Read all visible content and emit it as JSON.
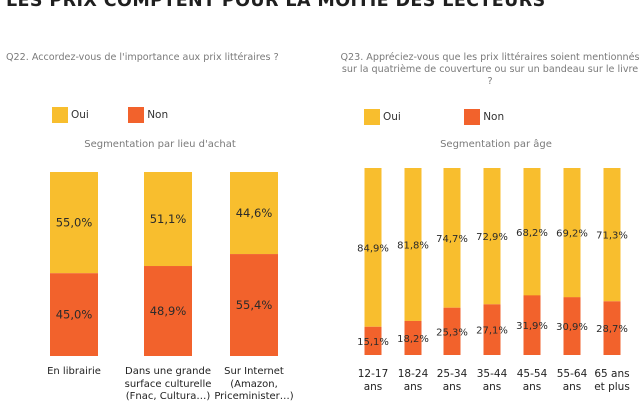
{
  "headline": "LES PRIX COMPTENT POUR LA MOITIÉ DES LECTEURS",
  "colors": {
    "oui": "#F8BE2E",
    "non": "#F2622C"
  },
  "legend": {
    "oui": "Oui",
    "non": "Non"
  },
  "left": {
    "question": "Q22. Accordez-vous de l'importance aux prix littéraires ?",
    "segmentation": "Segmentation par lieu d'achat"
  },
  "right": {
    "question": "Q23. Appréciez-vous que les prix littéraires soient mentionnés sur la quatrième de couverture ou sur un bandeau sur le livre ?",
    "segmentation": "Segmentation par âge"
  },
  "chart_data": [
    {
      "type": "bar",
      "stacked": true,
      "title": "Q22. Accordez-vous de l'importance aux prix littéraires ?",
      "subtitle": "Segmentation par lieu d'achat",
      "categories": [
        [
          "En librairie"
        ],
        [
          "Dans une grande",
          "surface culturelle",
          "(Fnac, Cultura…)"
        ],
        [
          "Sur Internet",
          "(Amazon,",
          "Priceminister…)"
        ]
      ],
      "series": [
        {
          "name": "Non",
          "values": [
            45.0,
            48.9,
            55.4
          ],
          "labels": [
            "45,0%",
            "48,9%",
            "55,4%"
          ]
        },
        {
          "name": "Oui",
          "values": [
            55.0,
            51.1,
            44.6
          ],
          "labels": [
            "55,0%",
            "51,1%",
            "44,6%"
          ]
        }
      ],
      "ylim": [
        0,
        100
      ],
      "legend": "top-left"
    },
    {
      "type": "bar",
      "stacked": true,
      "title": "Q23. Appréciez-vous que les prix littéraires soient mentionnés sur la quatrième de couverture ou sur un bandeau sur le livre ?",
      "subtitle": "Segmentation par âge",
      "categories": [
        [
          "12-17",
          "ans"
        ],
        [
          "18-24",
          "ans"
        ],
        [
          "25-34",
          "ans"
        ],
        [
          "35-44",
          "ans"
        ],
        [
          "45-54",
          "ans"
        ],
        [
          "55-64",
          "ans"
        ],
        [
          "65 ans",
          "et plus"
        ]
      ],
      "series": [
        {
          "name": "Non",
          "values": [
            15.1,
            18.2,
            25.3,
            27.1,
            31.9,
            30.9,
            28.7
          ],
          "labels": [
            "15,1%",
            "18,2%",
            "25,3%",
            "27,1%",
            "31,9%",
            "30,9%",
            "28,7%"
          ]
        },
        {
          "name": "Oui",
          "values": [
            84.9,
            81.8,
            74.7,
            72.9,
            68.2,
            69.2,
            71.3
          ],
          "labels": [
            "84,9%",
            "81,8%",
            "74,7%",
            "72,9%",
            "68,2%",
            "69,2%",
            "71,3%"
          ]
        }
      ],
      "ylim": [
        0,
        100
      ],
      "legend": "top-left"
    }
  ]
}
